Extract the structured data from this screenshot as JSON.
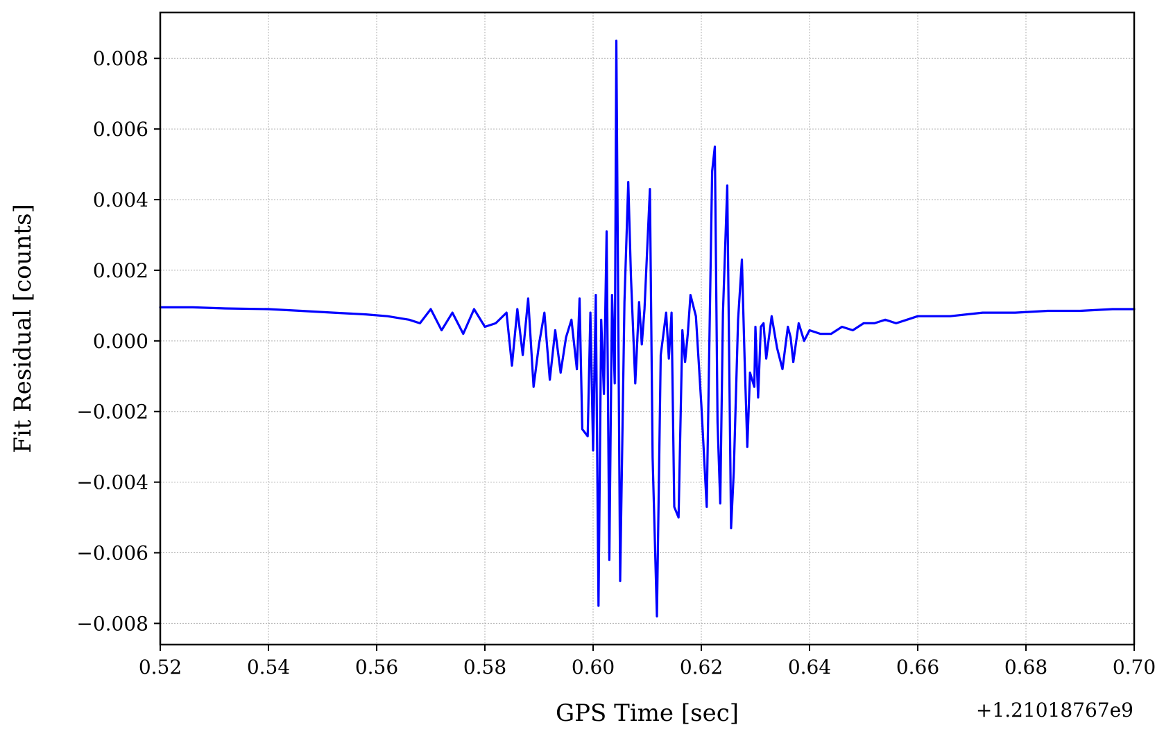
{
  "chart_data": {
    "type": "line",
    "xlabel": "GPS Time [sec]",
    "ylabel": "Fit Residual [counts]",
    "x_offset_label": "+1.21018767e9",
    "xlim": [
      0.52,
      0.7
    ],
    "ylim": [
      -0.0086,
      0.0093
    ],
    "x_ticks": [
      0.52,
      0.54,
      0.56,
      0.58,
      0.6,
      0.62,
      0.64,
      0.66,
      0.68,
      0.7
    ],
    "x_tick_labels": [
      "0.52",
      "0.54",
      "0.56",
      "0.58",
      "0.60",
      "0.62",
      "0.64",
      "0.66",
      "0.68",
      "0.70"
    ],
    "y_ticks": [
      -0.008,
      -0.006,
      -0.004,
      -0.002,
      0.0,
      0.002,
      0.004,
      0.006,
      0.008
    ],
    "y_tick_labels": [
      "−0.008",
      "−0.006",
      "−0.004",
      "−0.002",
      "0.000",
      "0.002",
      "0.004",
      "0.006",
      "0.008"
    ],
    "grid": true,
    "line_color": "#0000ff",
    "series": [
      {
        "x": [
          0.52,
          0.526,
          0.532,
          0.54,
          0.546,
          0.552,
          0.558,
          0.562,
          0.566,
          0.568,
          0.57,
          0.572,
          0.574,
          0.576,
          0.578,
          0.58,
          0.582,
          0.584,
          0.585,
          0.586,
          0.587,
          0.588,
          0.589,
          0.59,
          0.591,
          0.592,
          0.593,
          0.594,
          0.595,
          0.596,
          0.597,
          0.5975,
          0.598,
          0.599,
          0.5995,
          0.6,
          0.6005,
          0.601,
          0.6015,
          0.602,
          0.6025,
          0.603,
          0.6035,
          0.604,
          0.6043,
          0.605,
          0.6058,
          0.6065,
          0.607,
          0.6078,
          0.6085,
          0.609,
          0.6095,
          0.6105,
          0.611,
          0.6118,
          0.6125,
          0.6135,
          0.614,
          0.6145,
          0.615,
          0.6158,
          0.6165,
          0.617,
          0.6175,
          0.618,
          0.619,
          0.62,
          0.621,
          0.622,
          0.6225,
          0.623,
          0.6235,
          0.624,
          0.6248,
          0.6255,
          0.626,
          0.6268,
          0.6275,
          0.628,
          0.6285,
          0.629,
          0.6298,
          0.63,
          0.6305,
          0.631,
          0.6315,
          0.632,
          0.633,
          0.634,
          0.635,
          0.636,
          0.6365,
          0.637,
          0.638,
          0.639,
          0.64,
          0.642,
          0.644,
          0.646,
          0.648,
          0.65,
          0.652,
          0.654,
          0.656,
          0.658,
          0.66,
          0.666,
          0.672,
          0.678,
          0.684,
          0.69,
          0.696,
          0.7
        ],
        "y": [
          0.00095,
          0.00095,
          0.00092,
          0.0009,
          0.00085,
          0.0008,
          0.00075,
          0.0007,
          0.0006,
          0.0005,
          0.0009,
          0.0003,
          0.0008,
          0.0002,
          0.0009,
          0.0004,
          0.0005,
          0.0008,
          -0.0007,
          0.0009,
          -0.0004,
          0.0012,
          -0.0013,
          -0.0001,
          0.0008,
          -0.0011,
          0.0003,
          -0.0009,
          0.0001,
          0.0006,
          -0.0008,
          0.0012,
          -0.0025,
          -0.0027,
          0.0008,
          -0.0031,
          0.0013,
          -0.0075,
          0.0006,
          -0.0015,
          0.0031,
          -0.0062,
          0.0013,
          -0.0012,
          0.0085,
          -0.0068,
          0.0011,
          0.0045,
          0.0018,
          -0.0012,
          0.0011,
          -0.0001,
          0.0009,
          0.0043,
          -0.0033,
          -0.0078,
          -0.0004,
          0.0008,
          -0.0005,
          0.0008,
          -0.0047,
          -0.005,
          0.0003,
          -0.0006,
          0.0002,
          0.0013,
          0.0007,
          -0.0018,
          -0.0047,
          0.0048,
          0.0055,
          -0.0023,
          -0.0046,
          0.0008,
          0.0044,
          -0.0053,
          -0.0037,
          0.0006,
          0.0023,
          -0.0005,
          -0.003,
          -0.0009,
          -0.0013,
          0.0004,
          -0.0016,
          0.0004,
          0.0005,
          -0.0005,
          0.0007,
          -0.0002,
          -0.0008,
          0.0004,
          0.0001,
          -0.0006,
          0.0005,
          0.0,
          0.0003,
          0.0002,
          0.0002,
          0.0004,
          0.0003,
          0.0005,
          0.0005,
          0.0006,
          0.0005,
          0.0006,
          0.0007,
          0.0007,
          0.0008,
          0.0008,
          0.00085,
          0.00085,
          0.0009,
          0.0009
        ]
      }
    ]
  }
}
